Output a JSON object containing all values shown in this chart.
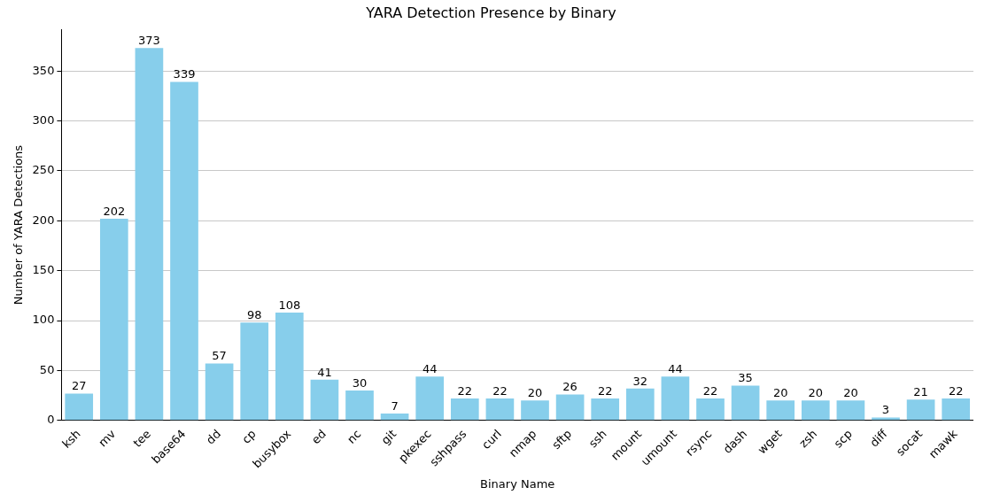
{
  "chart_data": {
    "type": "bar",
    "title": "YARA Detection Presence by Binary",
    "xlabel": "Binary Name",
    "ylabel": "Number of YARA Detections",
    "categories": [
      "ksh",
      "mv",
      "tee",
      "base64",
      "dd",
      "cp",
      "busybox",
      "ed",
      "nc",
      "git",
      "pkexec",
      "sshpass",
      "curl",
      "nmap",
      "sftp",
      "ssh",
      "mount",
      "umount",
      "rsync",
      "dash",
      "wget",
      "zsh",
      "scp",
      "diff",
      "socat",
      "mawk"
    ],
    "values": [
      27,
      202,
      373,
      339,
      57,
      98,
      108,
      41,
      30,
      7,
      44,
      22,
      22,
      20,
      26,
      22,
      32,
      44,
      22,
      35,
      20,
      20,
      20,
      3,
      21,
      22
    ],
    "color": "#87ceeb",
    "ylim": [
      0,
      391.65
    ],
    "yticks": [
      0,
      50,
      100,
      150,
      200,
      250,
      300,
      350
    ],
    "grid": "y",
    "data_labels": true
  }
}
